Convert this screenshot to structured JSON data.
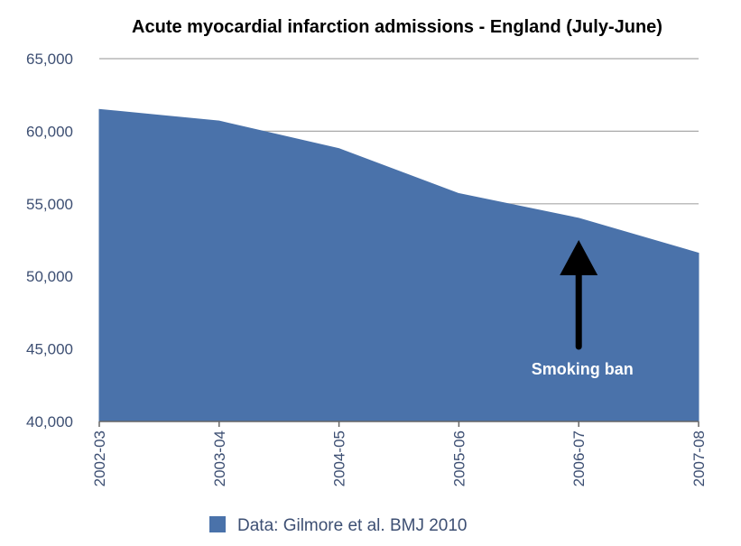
{
  "chart_data": {
    "type": "area",
    "title": "Acute myocardial infarction admissions - England (July-June)",
    "xlabel": "",
    "ylabel": "",
    "categories": [
      "2002-03",
      "2003-04",
      "2004-05",
      "2005-06",
      "2006-07",
      "2007-08"
    ],
    "series": [
      {
        "name": "Data: Gilmore et al. BMJ 2010",
        "values": [
          61500,
          60700,
          58800,
          55700,
          54000,
          51600
        ],
        "color": "#4a72aa"
      }
    ],
    "ylim": [
      40000,
      65000
    ],
    "yticks": [
      40000,
      45000,
      50000,
      55000,
      60000,
      65000
    ],
    "ytick_labels": [
      "40,000",
      "45,000",
      "50,000",
      "55,000",
      "60,000",
      "65,000"
    ],
    "grid": true,
    "legend_position": "bottom",
    "annotation": {
      "text": "Smoking ban",
      "category": "2006-07",
      "value": 53000
    }
  }
}
